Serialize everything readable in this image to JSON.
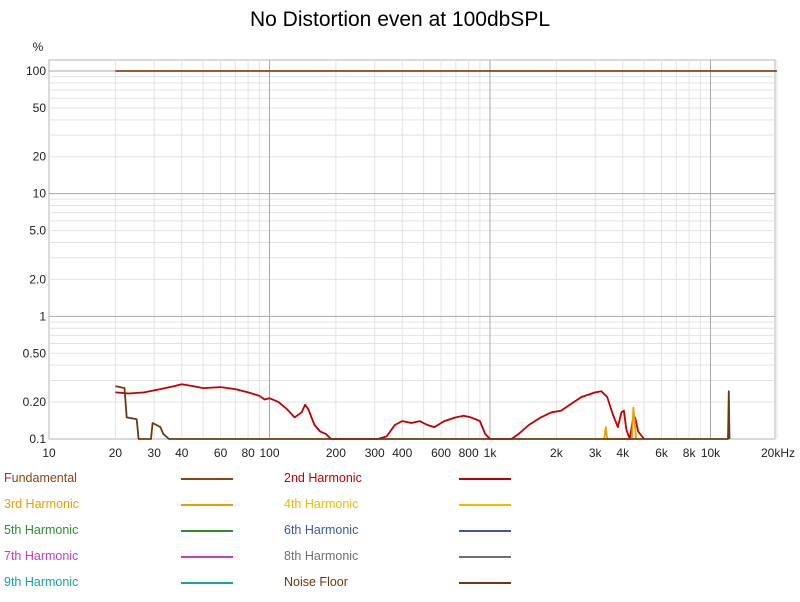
{
  "chart_data": {
    "type": "line",
    "title": "No Distortion even at 100dbSPL",
    "ylabel": "%",
    "xlabel": "",
    "x_scale": "log",
    "y_scale": "log",
    "xlim": [
      10,
      20000
    ],
    "ylim": [
      0.1,
      130
    ],
    "x_ticks": [
      {
        "v": 10,
        "label": "10"
      },
      {
        "v": 20,
        "label": "20"
      },
      {
        "v": 30,
        "label": "30"
      },
      {
        "v": 40,
        "label": "40"
      },
      {
        "v": 60,
        "label": "60"
      },
      {
        "v": 80,
        "label": "80"
      },
      {
        "v": 100,
        "label": "100"
      },
      {
        "v": 200,
        "label": "200"
      },
      {
        "v": 300,
        "label": "300"
      },
      {
        "v": 400,
        "label": "400"
      },
      {
        "v": 600,
        "label": "600"
      },
      {
        "v": 800,
        "label": "800"
      },
      {
        "v": 1000,
        "label": "1k"
      },
      {
        "v": 2000,
        "label": "2k"
      },
      {
        "v": 3000,
        "label": "3k"
      },
      {
        "v": 4000,
        "label": "4k"
      },
      {
        "v": 6000,
        "label": "6k"
      },
      {
        "v": 8000,
        "label": "8k"
      },
      {
        "v": 10000,
        "label": "10k"
      },
      {
        "v": 20000,
        "label": "20kHz"
      }
    ],
    "y_ticks": [
      {
        "v": 100,
        "label": "100"
      },
      {
        "v": 50,
        "label": "50"
      },
      {
        "v": 20,
        "label": "20"
      },
      {
        "v": 10,
        "label": "10"
      },
      {
        "v": 5,
        "label": "5.0"
      },
      {
        "v": 2,
        "label": "2.0"
      },
      {
        "v": 1,
        "label": "1"
      },
      {
        "v": 0.5,
        "label": "0.50"
      },
      {
        "v": 0.2,
        "label": "0.20"
      },
      {
        "v": 0.1,
        "label": "0.1"
      }
    ],
    "grid": true,
    "series": [
      {
        "name": "Fundamental",
        "color": "#8b4513",
        "points": [
          [
            20,
            100
          ],
          [
            20000,
            100
          ]
        ]
      },
      {
        "name": "2nd Harmonic",
        "color": "#c00000",
        "points": [
          [
            20,
            0.24
          ],
          [
            23,
            0.235
          ],
          [
            27,
            0.24
          ],
          [
            32,
            0.255
          ],
          [
            37,
            0.27
          ],
          [
            40,
            0.28
          ],
          [
            45,
            0.27
          ],
          [
            50,
            0.26
          ],
          [
            60,
            0.265
          ],
          [
            70,
            0.255
          ],
          [
            80,
            0.24
          ],
          [
            90,
            0.225
          ],
          [
            95,
            0.21
          ],
          [
            100,
            0.215
          ],
          [
            110,
            0.2
          ],
          [
            120,
            0.175
          ],
          [
            130,
            0.15
          ],
          [
            140,
            0.165
          ],
          [
            145,
            0.19
          ],
          [
            150,
            0.175
          ],
          [
            160,
            0.13
          ],
          [
            170,
            0.115
          ],
          [
            180,
            0.11
          ],
          [
            190,
            0.1
          ],
          [
            310,
            0.1
          ],
          [
            340,
            0.105
          ],
          [
            370,
            0.13
          ],
          [
            400,
            0.14
          ],
          [
            440,
            0.135
          ],
          [
            480,
            0.14
          ],
          [
            520,
            0.13
          ],
          [
            560,
            0.125
          ],
          [
            620,
            0.14
          ],
          [
            700,
            0.15
          ],
          [
            760,
            0.155
          ],
          [
            820,
            0.15
          ],
          [
            900,
            0.14
          ],
          [
            950,
            0.11
          ],
          [
            1000,
            0.1
          ],
          [
            1250,
            0.1
          ],
          [
            1350,
            0.11
          ],
          [
            1500,
            0.13
          ],
          [
            1700,
            0.15
          ],
          [
            1900,
            0.165
          ],
          [
            2100,
            0.17
          ],
          [
            2300,
            0.19
          ],
          [
            2600,
            0.22
          ],
          [
            3000,
            0.24
          ],
          [
            3200,
            0.245
          ],
          [
            3400,
            0.22
          ],
          [
            3600,
            0.16
          ],
          [
            3800,
            0.125
          ],
          [
            3950,
            0.165
          ],
          [
            4050,
            0.17
          ],
          [
            4150,
            0.12
          ],
          [
            4300,
            0.1
          ],
          [
            4450,
            0.145
          ],
          [
            4550,
            0.15
          ],
          [
            4700,
            0.115
          ],
          [
            5000,
            0.1
          ]
        ]
      },
      {
        "name": "3rd Harmonic",
        "color": "#e6a100",
        "points": [
          [
            3300,
            0.1
          ],
          [
            3350,
            0.125
          ],
          [
            3400,
            0.1
          ],
          [
            4400,
            0.1
          ],
          [
            4470,
            0.18
          ],
          [
            4600,
            0.1
          ]
        ]
      },
      {
        "name": "4th Harmonic",
        "color": "#e6c000",
        "points": []
      },
      {
        "name": "5th Harmonic",
        "color": "#2e8b2e",
        "points": []
      },
      {
        "name": "6th Harmonic",
        "color": "#3a5a9c",
        "points": []
      },
      {
        "name": "7th Harmonic",
        "color": "#c040c0",
        "points": []
      },
      {
        "name": "8th Harmonic",
        "color": "#707070",
        "points": []
      },
      {
        "name": "9th Harmonic",
        "color": "#1aa0a0",
        "points": []
      },
      {
        "name": "Noise Floor",
        "color": "#6b3a10",
        "points": [
          [
            20,
            0.27
          ],
          [
            22,
            0.26
          ],
          [
            22.5,
            0.15
          ],
          [
            25,
            0.145
          ],
          [
            25.5,
            0.1
          ],
          [
            29,
            0.1
          ],
          [
            29.5,
            0.135
          ],
          [
            32,
            0.125
          ],
          [
            33,
            0.11
          ],
          [
            35,
            0.1
          ],
          [
            12000,
            0.1
          ],
          [
            12100,
            0.245
          ],
          [
            12200,
            0.1
          ]
        ]
      }
    ]
  }
}
